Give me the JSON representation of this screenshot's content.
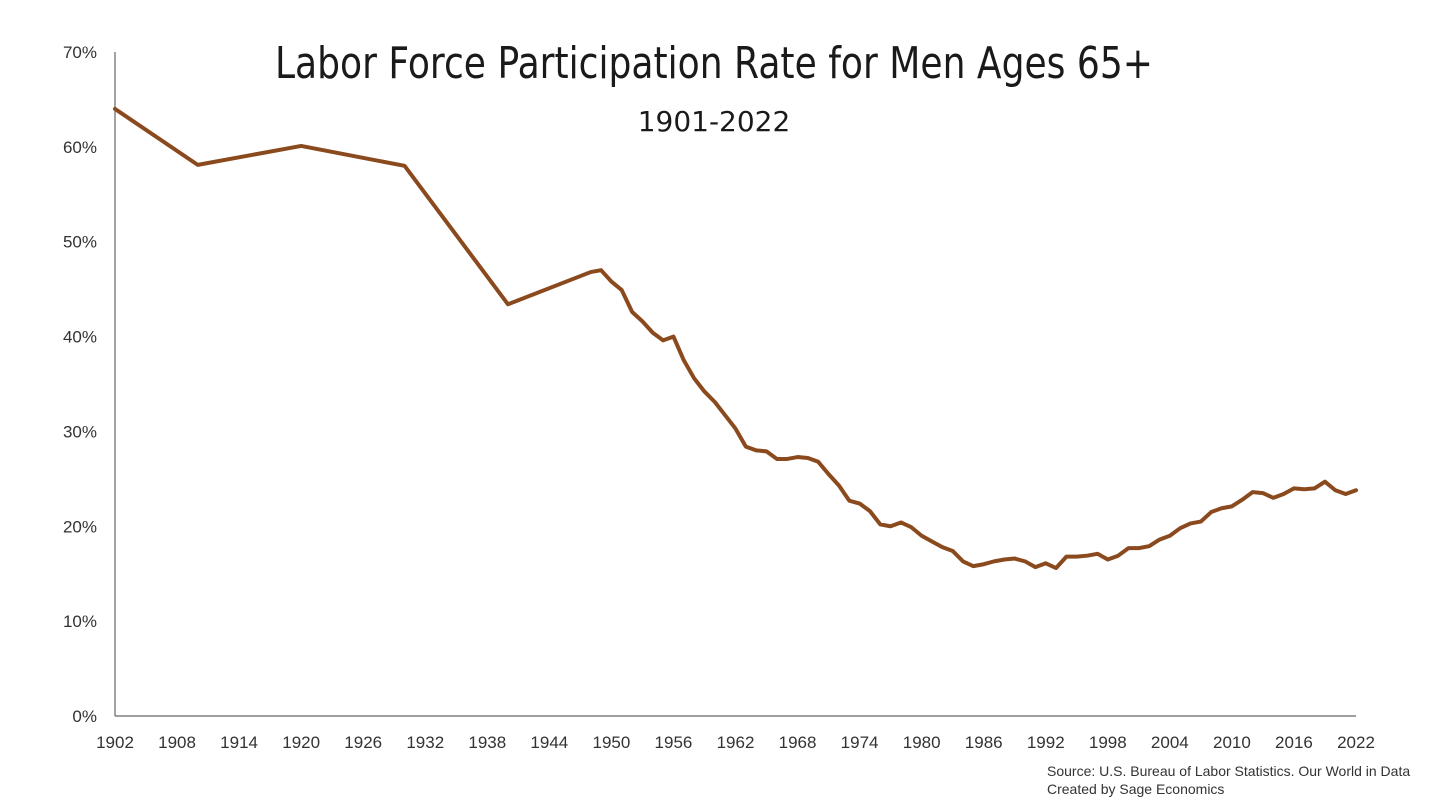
{
  "chart_data": {
    "type": "line",
    "title": "Labor Force Participation Rate for Men Ages 65+",
    "subtitle": "1901-2022",
    "xlabel": "",
    "ylabel": "",
    "xlim": [
      1902,
      2022
    ],
    "ylim": [
      0,
      70
    ],
    "x_ticks": [
      "1902",
      "1908",
      "1914",
      "1920",
      "1926",
      "1932",
      "1938",
      "1944",
      "1950",
      "1956",
      "1962",
      "1968",
      "1974",
      "1980",
      "1986",
      "1992",
      "1998",
      "2004",
      "2010",
      "2016",
      "2022"
    ],
    "y_ticks": [
      "0%",
      "10%",
      "20%",
      "30%",
      "40%",
      "50%",
      "60%",
      "70%"
    ],
    "grid": false,
    "legend": "none",
    "series": [
      {
        "color": "#8B4A1E",
        "x": [
          1902,
          1910,
          1920,
          1930,
          1940,
          1948,
          1949,
          1950,
          1951,
          1952,
          1953,
          1954,
          1955,
          1956,
          1957,
          1958,
          1959,
          1960,
          1961,
          1962,
          1963,
          1964,
          1965,
          1966,
          1967,
          1968,
          1969,
          1970,
          1971,
          1972,
          1973,
          1974,
          1975,
          1976,
          1977,
          1978,
          1979,
          1980,
          1981,
          1982,
          1983,
          1984,
          1985,
          1986,
          1987,
          1988,
          1989,
          1990,
          1991,
          1992,
          1993,
          1994,
          1995,
          1996,
          1997,
          1998,
          1999,
          2000,
          2001,
          2002,
          2003,
          2004,
          2005,
          2006,
          2007,
          2008,
          2009,
          2010,
          2011,
          2012,
          2013,
          2014,
          2015,
          2016,
          2017,
          2018,
          2019,
          2020,
          2021,
          2022
        ],
        "y": [
          64.0,
          58.1,
          60.1,
          58.0,
          43.4,
          46.8,
          47.0,
          45.8,
          44.9,
          42.6,
          41.6,
          40.4,
          39.6,
          40.0,
          37.5,
          35.6,
          34.2,
          33.1,
          31.7,
          30.3,
          28.4,
          28.0,
          27.9,
          27.1,
          27.1,
          27.3,
          27.2,
          26.8,
          25.5,
          24.3,
          22.7,
          22.4,
          21.6,
          20.2,
          20.0,
          20.4,
          19.9,
          19.0,
          18.4,
          17.8,
          17.4,
          16.3,
          15.8,
          16.0,
          16.3,
          16.5,
          16.6,
          16.3,
          15.7,
          16.1,
          15.6,
          16.8,
          16.8,
          16.9,
          17.1,
          16.5,
          16.9,
          17.7,
          17.7,
          17.9,
          18.6,
          19.0,
          19.8,
          20.3,
          20.5,
          21.5,
          21.9,
          22.1,
          22.8,
          23.6,
          23.5,
          23.0,
          23.4,
          24.0,
          23.9,
          24.0,
          24.7,
          23.8,
          23.4,
          23.8
        ]
      }
    ]
  },
  "source": {
    "line1": "Source: U.S. Bureau of Labor Statistics. Our World in Data",
    "line2": "Created by Sage Economics"
  }
}
